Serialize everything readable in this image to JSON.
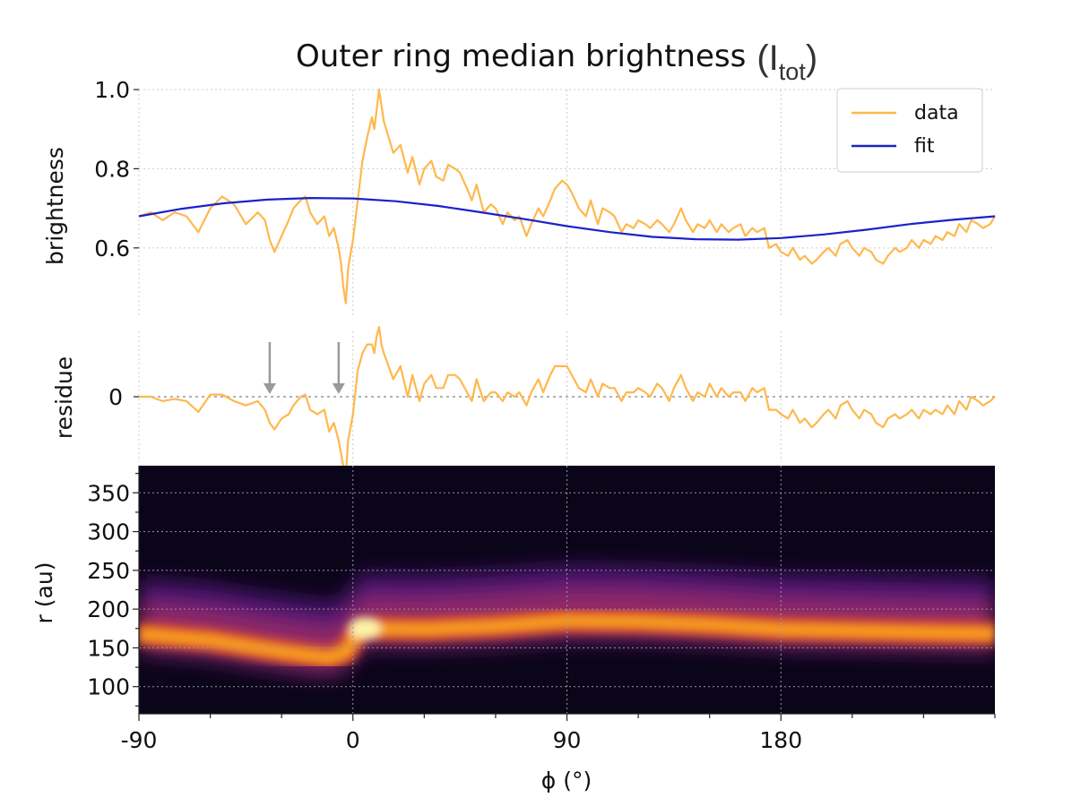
{
  "chart_data": [
    {
      "type": "line",
      "title": "Outer ring median brightness",
      "title_symbol": {
        "base": "I",
        "subscript": "tot"
      },
      "xlabel": "",
      "ylabel": "brightness",
      "xlim": [
        -90,
        270
      ],
      "ylim": [
        0.43,
        1.0
      ],
      "yticks": [
        "0.6",
        "0.8",
        "1.0"
      ],
      "grid": true,
      "legend": {
        "placement": "top-right",
        "entries": [
          "data",
          "fit"
        ]
      },
      "colors": {
        "data": "#ffb84d",
        "fit": "#1a22c8"
      },
      "series": [
        {
          "name": "data",
          "x": [
            -90,
            -85,
            -80,
            -75,
            -70,
            -65,
            -60,
            -55,
            -50,
            -45,
            -40,
            -37,
            -35,
            -33,
            -30,
            -27,
            -25,
            -22,
            -20,
            -18,
            -15,
            -12,
            -10,
            -8,
            -6,
            -5,
            -4,
            -3,
            -2,
            0,
            2,
            4,
            6,
            8,
            9,
            10,
            11,
            12,
            13,
            15,
            17,
            20,
            23,
            25,
            28,
            30,
            33,
            35,
            38,
            40,
            43,
            45,
            48,
            50,
            52,
            55,
            58,
            60,
            63,
            65,
            68,
            70,
            73,
            75,
            78,
            80,
            83,
            85,
            88,
            90,
            92,
            95,
            98,
            100,
            103,
            105,
            108,
            110,
            113,
            115,
            118,
            120,
            123,
            125,
            128,
            130,
            133,
            135,
            138,
            140,
            143,
            145,
            148,
            150,
            153,
            155,
            158,
            160,
            163,
            165,
            168,
            170,
            173,
            175,
            178,
            180,
            183,
            185,
            188,
            190,
            193,
            195,
            198,
            200,
            203,
            205,
            208,
            210,
            213,
            215,
            218,
            220,
            223,
            225,
            228,
            230,
            233,
            235,
            238,
            240,
            243,
            245,
            248,
            250,
            253,
            255,
            258,
            260,
            263,
            265,
            268,
            270
          ],
          "values": [
            0.68,
            0.69,
            0.67,
            0.69,
            0.68,
            0.64,
            0.7,
            0.73,
            0.71,
            0.66,
            0.69,
            0.67,
            0.62,
            0.59,
            0.63,
            0.67,
            0.7,
            0.72,
            0.73,
            0.69,
            0.66,
            0.68,
            0.63,
            0.65,
            0.6,
            0.56,
            0.5,
            0.46,
            0.55,
            0.62,
            0.72,
            0.82,
            0.88,
            0.93,
            0.9,
            0.95,
            1.0,
            0.96,
            0.92,
            0.88,
            0.84,
            0.86,
            0.79,
            0.83,
            0.76,
            0.8,
            0.82,
            0.78,
            0.77,
            0.81,
            0.8,
            0.79,
            0.75,
            0.72,
            0.76,
            0.69,
            0.71,
            0.7,
            0.66,
            0.69,
            0.67,
            0.68,
            0.63,
            0.66,
            0.7,
            0.68,
            0.72,
            0.75,
            0.77,
            0.76,
            0.74,
            0.7,
            0.68,
            0.72,
            0.66,
            0.7,
            0.69,
            0.68,
            0.64,
            0.66,
            0.65,
            0.67,
            0.66,
            0.65,
            0.67,
            0.66,
            0.64,
            0.66,
            0.7,
            0.67,
            0.64,
            0.66,
            0.65,
            0.67,
            0.64,
            0.66,
            0.64,
            0.65,
            0.66,
            0.63,
            0.65,
            0.64,
            0.65,
            0.6,
            0.61,
            0.59,
            0.58,
            0.6,
            0.57,
            0.58,
            0.56,
            0.57,
            0.59,
            0.6,
            0.58,
            0.61,
            0.62,
            0.6,
            0.58,
            0.6,
            0.59,
            0.57,
            0.56,
            0.58,
            0.6,
            0.59,
            0.6,
            0.62,
            0.6,
            0.62,
            0.61,
            0.63,
            0.62,
            0.64,
            0.63,
            0.66,
            0.64,
            0.67,
            0.66,
            0.65,
            0.66,
            0.68
          ]
        },
        {
          "name": "fit",
          "x": [
            -90,
            -72,
            -54,
            -36,
            -18,
            0,
            18,
            36,
            54,
            72,
            90,
            108,
            126,
            144,
            162,
            180,
            198,
            216,
            234,
            252,
            270
          ],
          "values": [
            0.68,
            0.699,
            0.713,
            0.722,
            0.726,
            0.725,
            0.718,
            0.706,
            0.69,
            0.673,
            0.655,
            0.64,
            0.628,
            0.622,
            0.621,
            0.625,
            0.634,
            0.646,
            0.66,
            0.671,
            0.68
          ]
        }
      ]
    },
    {
      "type": "line",
      "title": "",
      "xlabel": "",
      "ylabel": "residue",
      "xlim": [
        -90,
        270
      ],
      "ylim": [
        -0.15,
        0.15
      ],
      "yticks": [
        "0"
      ],
      "zero_line": true,
      "grid": true,
      "annotations": [
        {
          "type": "arrow",
          "x": -35,
          "direction": "down"
        },
        {
          "type": "arrow",
          "x": -6,
          "direction": "down"
        }
      ],
      "series": [
        {
          "name": "residue",
          "x": [
            -90,
            -85,
            -80,
            -75,
            -70,
            -65,
            -60,
            -55,
            -50,
            -45,
            -40,
            -37,
            -35,
            -33,
            -30,
            -27,
            -25,
            -22,
            -20,
            -18,
            -15,
            -12,
            -10,
            -8,
            -6,
            -5,
            -4,
            -3,
            -2,
            0,
            2,
            4,
            6,
            8,
            9,
            10,
            11,
            12,
            13,
            15,
            17,
            20,
            23,
            25,
            28,
            30,
            33,
            35,
            38,
            40,
            43,
            45,
            48,
            50,
            52,
            55,
            58,
            60,
            63,
            65,
            68,
            70,
            73,
            75,
            78,
            80,
            83,
            85,
            88,
            90,
            92,
            95,
            98,
            100,
            103,
            105,
            108,
            110,
            113,
            115,
            118,
            120,
            123,
            125,
            128,
            130,
            133,
            135,
            138,
            140,
            143,
            145,
            148,
            150,
            153,
            155,
            158,
            160,
            163,
            165,
            168,
            170,
            173,
            175,
            178,
            180,
            183,
            185,
            188,
            190,
            193,
            195,
            198,
            200,
            203,
            205,
            208,
            210,
            213,
            215,
            218,
            220,
            223,
            225,
            228,
            230,
            233,
            235,
            238,
            240,
            243,
            245,
            248,
            250,
            253,
            255,
            258,
            260,
            263,
            265,
            268,
            270
          ],
          "values": [
            0.0,
            0.0,
            -0.01,
            -0.005,
            -0.01,
            -0.035,
            0.005,
            0.005,
            -0.01,
            -0.02,
            -0.01,
            -0.03,
            -0.06,
            -0.075,
            -0.05,
            -0.04,
            -0.02,
            0.0,
            0.005,
            -0.03,
            -0.04,
            -0.03,
            -0.08,
            -0.06,
            -0.1,
            -0.13,
            -0.16,
            -0.18,
            -0.1,
            -0.04,
            0.06,
            0.1,
            0.12,
            0.12,
            0.1,
            0.14,
            0.16,
            0.12,
            0.1,
            0.07,
            0.04,
            0.07,
            0.0,
            0.05,
            -0.01,
            0.03,
            0.05,
            0.02,
            0.02,
            0.05,
            0.05,
            0.04,
            0.01,
            -0.01,
            0.04,
            -0.01,
            0.01,
            0.01,
            -0.01,
            0.01,
            0.0,
            0.01,
            -0.02,
            0.01,
            0.04,
            0.01,
            0.05,
            0.07,
            0.07,
            0.07,
            0.05,
            0.02,
            0.01,
            0.04,
            0.0,
            0.03,
            0.02,
            0.02,
            -0.01,
            0.01,
            0.01,
            0.02,
            0.01,
            0.0,
            0.03,
            0.02,
            -0.01,
            0.02,
            0.05,
            0.02,
            -0.01,
            0.01,
            0.0,
            0.03,
            0.0,
            0.02,
            0.0,
            0.01,
            0.01,
            -0.01,
            0.02,
            0.01,
            0.02,
            -0.03,
            -0.03,
            -0.04,
            -0.05,
            -0.03,
            -0.06,
            -0.05,
            -0.07,
            -0.06,
            -0.04,
            -0.03,
            -0.05,
            -0.02,
            -0.01,
            -0.03,
            -0.05,
            -0.03,
            -0.04,
            -0.06,
            -0.07,
            -0.05,
            -0.04,
            -0.05,
            -0.04,
            -0.03,
            -0.05,
            -0.03,
            -0.04,
            -0.03,
            -0.04,
            -0.02,
            -0.04,
            -0.01,
            -0.03,
            0.0,
            -0.01,
            -0.02,
            -0.01,
            0.0
          ]
        }
      ]
    },
    {
      "type": "heatmap",
      "title": "",
      "xlabel": "ϕ (°)",
      "ylabel": "r (au)",
      "xlim": [
        -90,
        270
      ],
      "ylim": [
        65,
        385
      ],
      "xticks": [
        "-90",
        "0",
        "90",
        "180"
      ],
      "yticks": [
        "100",
        "150",
        "200",
        "250",
        "300",
        "350"
      ],
      "colormap": "inferno",
      "grid": true,
      "ridge": {
        "x": [
          -90,
          -60,
          -40,
          -25,
          -10,
          -3,
          3,
          30,
          60,
          90,
          120,
          150,
          180,
          210,
          240,
          270
        ],
        "r": [
          168,
          160,
          150,
          143,
          137,
          145,
          175,
          174,
          178,
          185,
          184,
          180,
          174,
          172,
          170,
          168
        ]
      }
    }
  ]
}
